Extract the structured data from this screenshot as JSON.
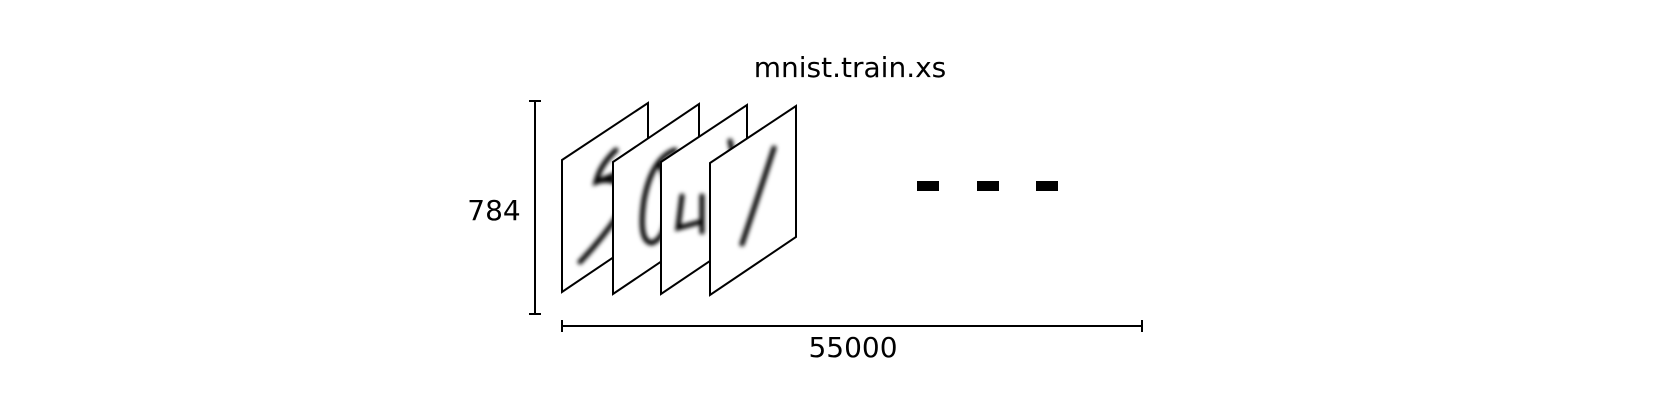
{
  "diagram": {
    "title": "mnist.train.xs",
    "height_label": "784",
    "width_label": "55000",
    "images": [
      {
        "digit": "5"
      },
      {
        "digit": "0"
      },
      {
        "digit": "4"
      },
      {
        "digit": "1"
      }
    ],
    "ellipsis_count": 3,
    "colors": {
      "stroke": "#000000",
      "background": "#ffffff"
    }
  }
}
